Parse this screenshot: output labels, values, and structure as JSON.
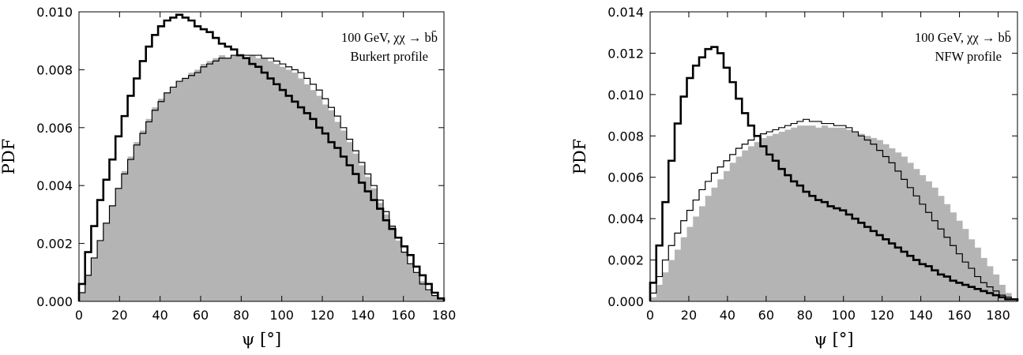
{
  "chart_data": [
    {
      "type": "histogram",
      "annotation_line1": "100 GeV, χχ → bb̄",
      "annotation_line2": "Burkert profile",
      "xlabel": "ψ [°]",
      "ylabel": "PDF",
      "xlim": [
        0,
        180
      ],
      "ylim": [
        0,
        0.01
      ],
      "xticks": [
        "0",
        "20",
        "40",
        "60",
        "80",
        "100",
        "120",
        "140",
        "160",
        "180"
      ],
      "yticks": [
        "0.000",
        "0.002",
        "0.004",
        "0.006",
        "0.008",
        "0.010"
      ],
      "grid": false,
      "bin_edges_start": 0,
      "bin_width": 3,
      "series": [
        {
          "style": "filled-gray",
          "values": [
            0.0003,
            0.0009,
            0.0015,
            0.0021,
            0.0027,
            0.0033,
            0.0039,
            0.0045,
            0.005,
            0.0055,
            0.0059,
            0.0063,
            0.0067,
            0.007,
            0.0072,
            0.0074,
            0.0076,
            0.0077,
            0.0079,
            0.008,
            0.0082,
            0.0083,
            0.0084,
            0.0085,
            0.0084,
            0.0085,
            0.0085,
            0.0084,
            0.0085,
            0.0084,
            0.0084,
            0.0083,
            0.0082,
            0.0081,
            0.008,
            0.0079,
            0.0077,
            0.0075,
            0.0073,
            0.0071,
            0.0068,
            0.0066,
            0.0062,
            0.0059,
            0.0055,
            0.0051,
            0.0047,
            0.0043,
            0.0039,
            0.0034,
            0.003,
            0.0026,
            0.0021,
            0.0017,
            0.0013,
            0.001,
            0.0007,
            0.0004,
            0.0002,
            0.0001
          ]
        },
        {
          "style": "thin-line",
          "values": [
            0.0003,
            0.0009,
            0.0015,
            0.0021,
            0.0027,
            0.0033,
            0.0039,
            0.0044,
            0.0049,
            0.0054,
            0.0058,
            0.0062,
            0.0066,
            0.0069,
            0.0072,
            0.0074,
            0.0076,
            0.0077,
            0.0078,
            0.0079,
            0.0081,
            0.0082,
            0.0083,
            0.0084,
            0.0084,
            0.0085,
            0.0085,
            0.0085,
            0.0085,
            0.0085,
            0.0084,
            0.0084,
            0.0083,
            0.0082,
            0.0081,
            0.008,
            0.0079,
            0.0077,
            0.0075,
            0.0073,
            0.007,
            0.0067,
            0.0064,
            0.006,
            0.0056,
            0.0052,
            0.0048,
            0.0044,
            0.004,
            0.0035,
            0.0031,
            0.0026,
            0.0022,
            0.0017,
            0.0013,
            0.001,
            0.0006,
            0.0004,
            0.0002,
            0.0001
          ]
        },
        {
          "style": "thick-line",
          "values": [
            0.0006,
            0.0017,
            0.0026,
            0.0035,
            0.0042,
            0.0049,
            0.0057,
            0.0064,
            0.0071,
            0.0077,
            0.0083,
            0.0088,
            0.0092,
            0.0095,
            0.0097,
            0.0098,
            0.0099,
            0.0098,
            0.0097,
            0.0095,
            0.0094,
            0.0093,
            0.0091,
            0.0089,
            0.0088,
            0.0087,
            0.0085,
            0.0084,
            0.0082,
            0.0081,
            0.0079,
            0.0077,
            0.0075,
            0.0073,
            0.0071,
            0.0069,
            0.0067,
            0.0065,
            0.0063,
            0.006,
            0.0058,
            0.0055,
            0.0053,
            0.005,
            0.0047,
            0.0044,
            0.0041,
            0.0038,
            0.0035,
            0.0032,
            0.0028,
            0.0025,
            0.0022,
            0.0019,
            0.0016,
            0.0012,
            0.0009,
            0.0006,
            0.0003,
            0.0001
          ]
        }
      ]
    },
    {
      "type": "histogram",
      "annotation_line1": "100 GeV, χχ → bb̄",
      "annotation_line2": "NFW profile",
      "xlabel": "ψ [°]",
      "ylabel": "PDF",
      "xlim": [
        0,
        190
      ],
      "ylim": [
        0,
        0.014
      ],
      "xticks": [
        "0",
        "20",
        "40",
        "60",
        "80",
        "100",
        "120",
        "140",
        "160",
        "180"
      ],
      "yticks": [
        "0.000",
        "0.002",
        "0.004",
        "0.006",
        "0.008",
        "0.010",
        "0.012",
        "0.014"
      ],
      "grid": false,
      "bin_edges_start": 0,
      "bin_width": 3.1667,
      "series": [
        {
          "style": "filled-gray",
          "values": [
            0.0002,
            0.0008,
            0.0014,
            0.002,
            0.0025,
            0.0031,
            0.0036,
            0.0041,
            0.0046,
            0.0051,
            0.0055,
            0.0059,
            0.0063,
            0.0067,
            0.007,
            0.0073,
            0.0075,
            0.0077,
            0.0079,
            0.008,
            0.0081,
            0.0082,
            0.0083,
            0.0084,
            0.0085,
            0.0085,
            0.0085,
            0.0084,
            0.0085,
            0.0084,
            0.0084,
            0.0084,
            0.0083,
            0.0082,
            0.0081,
            0.008,
            0.0079,
            0.0078,
            0.0076,
            0.0074,
            0.0072,
            0.007,
            0.0067,
            0.0064,
            0.0061,
            0.0058,
            0.0055,
            0.0051,
            0.0047,
            0.0043,
            0.0039,
            0.0035,
            0.003,
            0.0026,
            0.0021,
            0.0017,
            0.0013,
            0.0008,
            0.0004,
            0.0001
          ]
        },
        {
          "style": "thin-line",
          "values": [
            0.0004,
            0.0012,
            0.002,
            0.0027,
            0.0033,
            0.0039,
            0.0044,
            0.0049,
            0.0054,
            0.0058,
            0.0062,
            0.0065,
            0.0068,
            0.0071,
            0.0074,
            0.0076,
            0.0078,
            0.008,
            0.0081,
            0.0082,
            0.0083,
            0.0084,
            0.0085,
            0.0086,
            0.0087,
            0.0088,
            0.0087,
            0.0087,
            0.0086,
            0.0086,
            0.0085,
            0.0085,
            0.0084,
            0.0082,
            0.008,
            0.0078,
            0.0076,
            0.0073,
            0.007,
            0.0067,
            0.0063,
            0.0059,
            0.0055,
            0.0051,
            0.0047,
            0.0043,
            0.0039,
            0.0035,
            0.0031,
            0.0027,
            0.0023,
            0.0019,
            0.0016,
            0.0012,
            0.0009,
            0.0007,
            0.0005,
            0.0003,
            0.0002,
            0.0001
          ]
        },
        {
          "style": "thick-line",
          "values": [
            0.0009,
            0.0027,
            0.0048,
            0.0068,
            0.0086,
            0.0099,
            0.0108,
            0.0114,
            0.0118,
            0.0122,
            0.0123,
            0.012,
            0.0113,
            0.0106,
            0.0098,
            0.0091,
            0.0085,
            0.008,
            0.0075,
            0.0071,
            0.0068,
            0.0064,
            0.0061,
            0.0058,
            0.0056,
            0.0053,
            0.0051,
            0.0049,
            0.0048,
            0.0046,
            0.0045,
            0.0044,
            0.0042,
            0.004,
            0.0038,
            0.0036,
            0.0034,
            0.0032,
            0.003,
            0.0028,
            0.0026,
            0.0024,
            0.0022,
            0.002,
            0.0018,
            0.0017,
            0.0015,
            0.0013,
            0.0012,
            0.001,
            0.0009,
            0.0008,
            0.0007,
            0.0006,
            0.0005,
            0.0004,
            0.0003,
            0.0002,
            0.0001,
            0.0001
          ]
        }
      ]
    }
  ]
}
